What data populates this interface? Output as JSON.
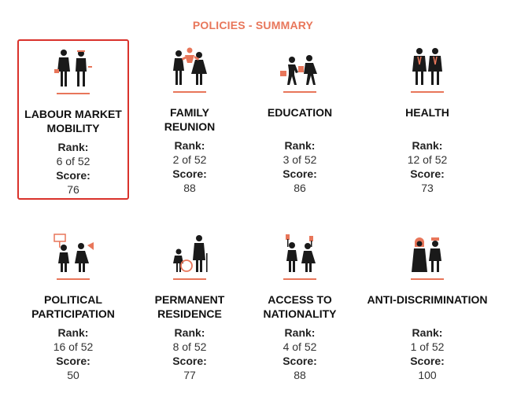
{
  "title": "POLICIES - SUMMARY",
  "colors": {
    "accent": "#e8765a",
    "selected_border": "#d9322b",
    "icon": "#1a1a1a"
  },
  "policies": [
    {
      "name_line1": "LABOUR MARKET",
      "name_line2": "MOBILITY",
      "rank_label": "Rank:",
      "rank": "6 of 52",
      "score_label": "Score:",
      "score": "76",
      "icon": "workers-icon",
      "selected": true
    },
    {
      "name_line1": "FAMILY",
      "name_line2": "REUNION",
      "rank_label": "Rank:",
      "rank": "2 of 52",
      "score_label": "Score:",
      "score": "88",
      "icon": "family-icon",
      "selected": false
    },
    {
      "name_line1": "EDUCATION",
      "name_line2": "",
      "rank_label": "Rank:",
      "rank": "3 of 52",
      "score_label": "Score:",
      "score": "86",
      "icon": "students-icon",
      "selected": false
    },
    {
      "name_line1": "HEALTH",
      "name_line2": "",
      "rank_label": "Rank:",
      "rank": "12 of 52",
      "score_label": "Score:",
      "score": "73",
      "icon": "doctors-icon",
      "selected": false
    },
    {
      "name_line1": "POLITICAL",
      "name_line2": "PARTICIPATION",
      "rank_label": "Rank:",
      "rank": "16 of 52",
      "score_label": "Score:",
      "score": "50",
      "icon": "protest-icon",
      "selected": false
    },
    {
      "name_line1": "PERMANENT",
      "name_line2": "RESIDENCE",
      "rank_label": "Rank:",
      "rank": "8 of 52",
      "score_label": "Score:",
      "score": "77",
      "icon": "elder-child-icon",
      "selected": false
    },
    {
      "name_line1": "ACCESS TO",
      "name_line2": "NATIONALITY",
      "rank_label": "Rank:",
      "rank": "4 of 52",
      "score_label": "Score:",
      "score": "88",
      "icon": "passport-icon",
      "selected": false
    },
    {
      "name_line1": "ANTI-DISCRIMINATION",
      "name_line2": "",
      "rank_label": "Rank:",
      "rank": "1 of 52",
      "score_label": "Score:",
      "score": "100",
      "icon": "diverse-people-icon",
      "selected": false
    }
  ]
}
